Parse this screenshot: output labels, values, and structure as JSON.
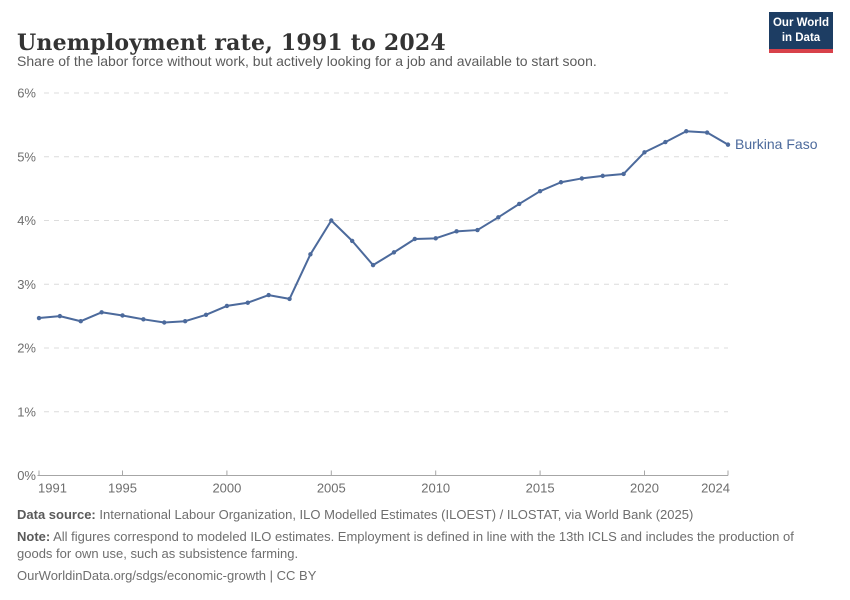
{
  "header": {
    "title": "Unemployment rate, 1991 to 2024",
    "subtitle": "Share of the labor force without work, but actively looking for a job and available to start soon.",
    "logo": {
      "line1": "Our World",
      "line2": "in Data"
    }
  },
  "chart_data": {
    "type": "line",
    "title": "Unemployment rate, 1991 to 2024",
    "xlabel": "",
    "ylabel": "",
    "xlim": [
      1991,
      2024
    ],
    "ylim": [
      0,
      6
    ],
    "grid": "horizontal-dashed",
    "legend_position": "end-of-line-label",
    "x_ticks": [
      1991,
      1995,
      2000,
      2005,
      2010,
      2015,
      2020,
      2024
    ],
    "y_ticks": [
      "0%",
      "1%",
      "2%",
      "3%",
      "4%",
      "5%",
      "6%"
    ],
    "series": [
      {
        "name": "Burkina Faso",
        "color": "#4c6a9c",
        "x": [
          1991,
          1992,
          1993,
          1994,
          1995,
          1996,
          1997,
          1998,
          1999,
          2000,
          2001,
          2002,
          2003,
          2004,
          2005,
          2006,
          2007,
          2008,
          2009,
          2010,
          2011,
          2012,
          2013,
          2014,
          2015,
          2016,
          2017,
          2018,
          2019,
          2020,
          2021,
          2022,
          2023,
          2024
        ],
        "values": [
          2.47,
          2.5,
          2.42,
          2.56,
          2.51,
          2.45,
          2.4,
          2.42,
          2.52,
          2.66,
          2.71,
          2.83,
          2.77,
          3.47,
          4.0,
          3.68,
          3.3,
          3.5,
          3.71,
          3.72,
          3.83,
          3.85,
          4.05,
          4.26,
          4.46,
          4.6,
          4.66,
          4.7,
          4.73,
          5.07,
          5.23,
          5.4,
          5.38,
          5.19
        ]
      }
    ]
  },
  "footer": {
    "data_source_label": "Data source:",
    "data_source_text": " International Labour Organization, ILO Modelled Estimates (ILOEST) / ILOSTAT, via World Bank (2025)",
    "note_label": "Note:",
    "note_text": " All figures correspond to modeled ILO estimates. Employment is defined in line with the 13th ICLS and includes the production of goods for own use, such as subsistence farming.",
    "citation": "OurWorldinData.org/sdgs/economic-growth | CC BY"
  },
  "colors": {
    "series_blue": "#4c6a9c",
    "grid_gray": "#dcdcdc",
    "axis_gray": "#a6a6a6",
    "tick_text_gray": "#6e6e6e",
    "title_gray": "#333333",
    "subtitle_gray": "#5b5b5b",
    "footer_gray": "#6e6e6e",
    "logo_navy": "#1d3d63",
    "logo_red": "#d8414a"
  }
}
